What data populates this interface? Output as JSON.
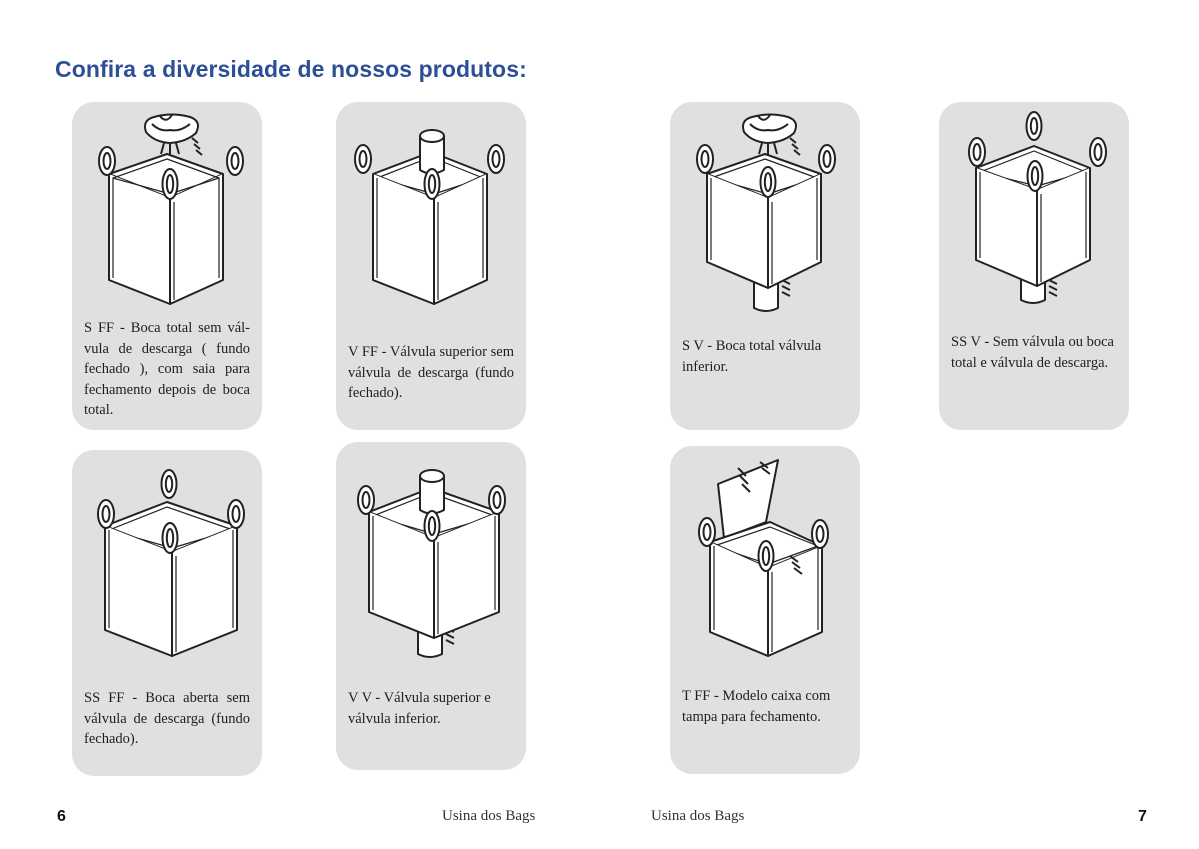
{
  "page": {
    "title": "Confira a diversidade de nossos produtos:"
  },
  "products": [
    {
      "id": "s-ff",
      "description": "S FF - Boca total sem vál-vula de descarga ( fundo fechado ), com saia para fechamento depois de boca total.",
      "top": "fill-skirt",
      "bottom": "flat"
    },
    {
      "id": "v-ff",
      "description": "V FF - Válvula superior sem válvula de descarga (fundo fechado).",
      "top": "valve",
      "bottom": "flat"
    },
    {
      "id": "s-v",
      "description": "S V - Boca total válvula inferior.",
      "top": "fill-skirt",
      "bottom": "discharge-valve"
    },
    {
      "id": "ss-v",
      "description": "SS V - Sem válvula ou boca total e válvula de descarga.",
      "top": "open",
      "bottom": "discharge-valve"
    },
    {
      "id": "ss-ff",
      "description": "SS FF - Boca aberta sem válvula de descarga (fundo fechado).",
      "top": "open",
      "bottom": "flat"
    },
    {
      "id": "v-v",
      "description": "V V - Válvula superior e válvula inferior.",
      "top": "valve",
      "bottom": "discharge-valve"
    },
    {
      "id": "t-ff",
      "description": "T FF - Modelo caixa com tampa para fechamento.",
      "top": "lid",
      "bottom": "flat"
    }
  ],
  "footer": {
    "left_page_number": "6",
    "right_page_number": "7",
    "left_brand": "Usina dos Bags",
    "right_brand": "Usina dos Bags"
  }
}
